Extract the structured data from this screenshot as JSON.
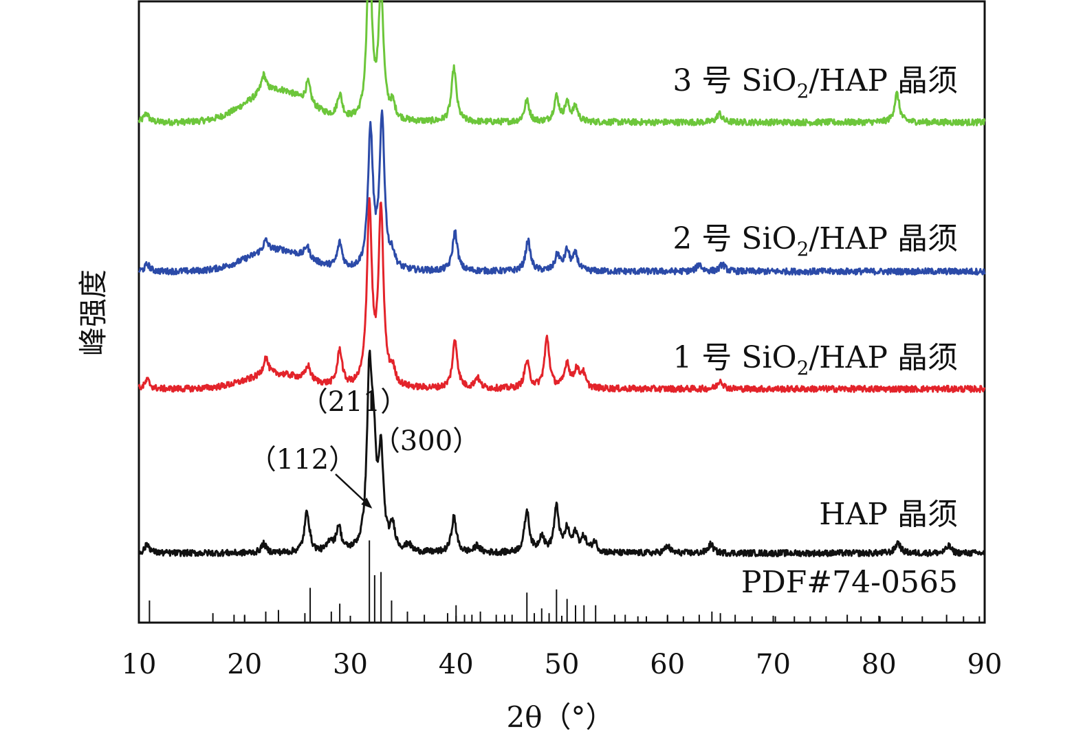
{
  "chart_data": {
    "type": "line",
    "title": "",
    "xlabel": "2θ（°）",
    "ylabel": "峰强度",
    "xlim": [
      10,
      90
    ],
    "xticks": [
      10,
      20,
      30,
      40,
      50,
      60,
      70,
      80,
      90
    ],
    "grid": false,
    "series": [
      {
        "name": "3 号 SiO2/HAP 晶须",
        "label_main": "3 号 SiO",
        "label_sub": "2",
        "label_tail": "/HAP 晶须",
        "color": "#6cc63a",
        "baseline": 2.62,
        "peaks": [
          [
            10.7,
            0.05
          ],
          [
            21.8,
            0.1
          ],
          [
            26.0,
            0.12
          ],
          [
            29.0,
            0.13
          ],
          [
            31.8,
            0.95
          ],
          [
            32.9,
            0.72
          ],
          [
            34.0,
            0.08
          ],
          [
            39.8,
            0.3
          ],
          [
            46.7,
            0.12
          ],
          [
            49.5,
            0.14
          ],
          [
            50.5,
            0.1
          ],
          [
            51.3,
            0.08
          ],
          [
            64.9,
            0.05
          ],
          [
            81.7,
            0.16
          ]
        ],
        "hump": [
          23,
          0.18
        ]
      },
      {
        "name": "2 号 SiO2/HAP 晶须",
        "label_main": "2 号 SiO",
        "label_sub": "2",
        "label_tail": "/HAP 晶须",
        "color": "#2b4aa8",
        "baseline": 1.74,
        "peaks": [
          [
            10.8,
            0.04
          ],
          [
            22.0,
            0.06
          ],
          [
            25.9,
            0.07
          ],
          [
            29.0,
            0.14
          ],
          [
            31.9,
            0.77
          ],
          [
            33.0,
            0.84
          ],
          [
            34.0,
            0.07
          ],
          [
            39.9,
            0.22
          ],
          [
            46.8,
            0.17
          ],
          [
            49.6,
            0.09
          ],
          [
            50.5,
            0.11
          ],
          [
            51.3,
            0.09
          ],
          [
            63.0,
            0.04
          ],
          [
            65.2,
            0.04
          ]
        ],
        "hump": [
          23,
          0.12
        ]
      },
      {
        "name": "1 号 SiO2/HAP 晶须",
        "label_main": "1 号 SiO",
        "label_sub": "2",
        "label_tail": "/HAP 晶须",
        "color": "#e3232a",
        "baseline": 0.98,
        "peaks": [
          [
            10.8,
            0.05
          ],
          [
            22.0,
            0.1
          ],
          [
            26.0,
            0.08
          ],
          [
            29.0,
            0.2
          ],
          [
            31.8,
            1.0
          ],
          [
            32.9,
            0.98
          ],
          [
            34.0,
            0.08
          ],
          [
            39.9,
            0.27
          ],
          [
            42.0,
            0.06
          ],
          [
            46.7,
            0.15
          ],
          [
            48.6,
            0.28
          ],
          [
            50.5,
            0.14
          ],
          [
            51.4,
            0.1
          ],
          [
            52.0,
            0.08
          ],
          [
            65.0,
            0.05
          ]
        ],
        "hump": [
          23,
          0.08
        ]
      },
      {
        "name": "HAP 晶须",
        "label_main": "HAP 晶须",
        "label_sub": "",
        "label_tail": "",
        "color": "#111111",
        "baseline": 0.0,
        "peaks": [
          [
            10.8,
            0.05
          ],
          [
            21.8,
            0.05
          ],
          [
            25.9,
            0.23
          ],
          [
            28.1,
            0.06
          ],
          [
            28.9,
            0.14
          ],
          [
            31.8,
            0.93
          ],
          [
            32.2,
            0.47
          ],
          [
            32.9,
            0.52
          ],
          [
            34.0,
            0.13
          ],
          [
            35.5,
            0.04
          ],
          [
            39.8,
            0.2
          ],
          [
            42.0,
            0.04
          ],
          [
            46.7,
            0.23
          ],
          [
            48.1,
            0.09
          ],
          [
            49.5,
            0.25
          ],
          [
            50.5,
            0.12
          ],
          [
            51.3,
            0.1
          ],
          [
            52.1,
            0.08
          ],
          [
            53.1,
            0.06
          ],
          [
            60.0,
            0.04
          ],
          [
            64.1,
            0.05
          ],
          [
            81.8,
            0.06
          ],
          [
            86.6,
            0.04
          ]
        ],
        "hump": [
          23,
          0.0
        ]
      }
    ],
    "reference": {
      "label": "PDF#74-0565",
      "sticks": [
        [
          11,
          0.14
        ],
        [
          17,
          0.06
        ],
        [
          19,
          0.05
        ],
        [
          20,
          0.05
        ],
        [
          22,
          0.07
        ],
        [
          23.2,
          0.08
        ],
        [
          25.7,
          0.06
        ],
        [
          26.2,
          0.22
        ],
        [
          28.2,
          0.07
        ],
        [
          29,
          0.12
        ],
        [
          31.8,
          0.52
        ],
        [
          32.3,
          0.3
        ],
        [
          32.9,
          0.32
        ],
        [
          33.9,
          0.14
        ],
        [
          35.4,
          0.07
        ],
        [
          37,
          0.05
        ],
        [
          39.2,
          0.06
        ],
        [
          40,
          0.11
        ],
        [
          40.8,
          0.05
        ],
        [
          41.5,
          0.05
        ],
        [
          42.3,
          0.07
        ],
        [
          43.8,
          0.05
        ],
        [
          44.6,
          0.05
        ],
        [
          45.3,
          0.05
        ],
        [
          46.7,
          0.19
        ],
        [
          47.4,
          0.06
        ],
        [
          48.1,
          0.09
        ],
        [
          48.8,
          0.06
        ],
        [
          49.5,
          0.21
        ],
        [
          50.5,
          0.15
        ],
        [
          51.3,
          0.11
        ],
        [
          52.1,
          0.11
        ],
        [
          53.2,
          0.11
        ],
        [
          55,
          0.05
        ],
        [
          56,
          0.05
        ],
        [
          57.2,
          0.04
        ],
        [
          58,
          0.04
        ],
        [
          60,
          0.05
        ],
        [
          61.5,
          0.04
        ],
        [
          63,
          0.05
        ],
        [
          64.2,
          0.07
        ],
        [
          65,
          0.06
        ],
        [
          66.4,
          0.05
        ],
        [
          68,
          0.04
        ],
        [
          70.2,
          0.04
        ],
        [
          72,
          0.04
        ],
        [
          73.5,
          0.04
        ],
        [
          75,
          0.04
        ],
        [
          77,
          0.05
        ],
        [
          78.3,
          0.04
        ],
        [
          80.1,
          0.04
        ],
        [
          82.2,
          0.04
        ],
        [
          84.1,
          0.04
        ],
        [
          86.4,
          0.05
        ],
        [
          88,
          0.04
        ],
        [
          89.5,
          0.04
        ]
      ]
    },
    "annotations": [
      {
        "text": "（211）",
        "x": 31.8
      },
      {
        "text": "（112）",
        "x": 32.2
      },
      {
        "text": "（300）",
        "x": 32.9
      }
    ]
  }
}
